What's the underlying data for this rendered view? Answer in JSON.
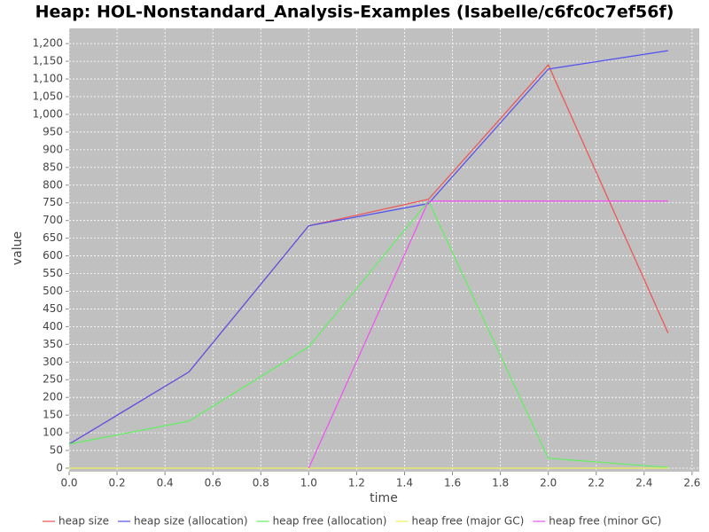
{
  "chart_data": {
    "type": "line",
    "title": "Heap: HOL-Nonstandard_Analysis-Examples (Isabelle/c6fc0c7ef56f)",
    "x_label": "time",
    "y_label": "value",
    "x": [
      0,
      0.5,
      1,
      1.5,
      2,
      2.5
    ],
    "series": [
      {
        "name": "heap size",
        "color": "#f05050",
        "values": [
          68,
          272,
          685,
          760,
          1140,
          382
        ]
      },
      {
        "name": "heap size (allocation)",
        "color": "#5050f0",
        "values": [
          68,
          272,
          685,
          748,
          1128,
          1180
        ]
      },
      {
        "name": "heap free (allocation)",
        "color": "#60f060",
        "values": [
          68,
          133,
          343,
          755,
          28,
          2
        ]
      },
      {
        "name": "heap free (major GC)",
        "color": "#f0f060",
        "values": [
          0,
          0,
          0,
          0,
          0,
          0
        ]
      },
      {
        "name": "heap free (minor GC)",
        "color": "#f050f0",
        "values": [
          null,
          null,
          0,
          755,
          755,
          755
        ]
      }
    ],
    "xlim": [
      0,
      2.63
    ],
    "ylim": [
      -10,
      1243
    ],
    "xticks": [
      {
        "value": 0,
        "label": "0.0"
      },
      0.2,
      0.4,
      0.6,
      0.8,
      {
        "value": 1,
        "label": "1.0"
      },
      1.2,
      1.4,
      1.6,
      1.8,
      {
        "value": 2,
        "label": "2.0"
      },
      2.2,
      2.4,
      2.6
    ],
    "yticks": [
      0,
      50,
      100,
      150,
      200,
      250,
      300,
      350,
      400,
      450,
      500,
      550,
      600,
      650,
      700,
      750,
      800,
      850,
      900,
      950,
      {
        "value": 1000,
        "label": "1,000"
      },
      {
        "value": 1050,
        "label": "1,050"
      },
      {
        "value": 1100,
        "label": "1,100"
      },
      {
        "value": 1150,
        "label": "1,150"
      },
      {
        "value": 1200,
        "label": "1,200"
      }
    ],
    "grid": true,
    "legend": "bottom"
  }
}
